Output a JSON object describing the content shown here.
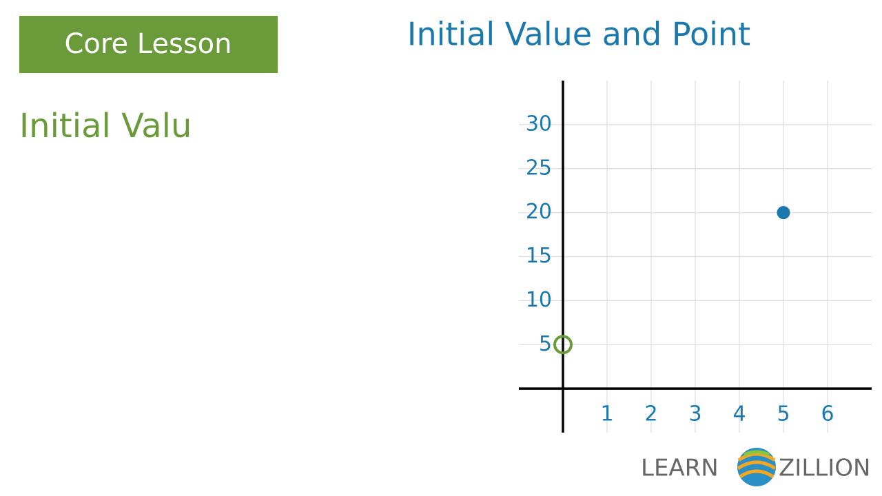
{
  "badge": "Core Lesson",
  "heading": "Initial Valu",
  "logo": {
    "left": "LEARN",
    "right": "ZILLION"
  },
  "chart_data": {
    "type": "scatter",
    "title": "Initial Value and Point",
    "xlim": [
      -1,
      7
    ],
    "ylim": [
      -5,
      35
    ],
    "xticks": [
      1,
      2,
      3,
      4,
      5,
      6
    ],
    "yticks": [
      5,
      10,
      15,
      20,
      25,
      30
    ],
    "grid": true,
    "series": [
      {
        "color": "#6a9a3a",
        "marker": "open",
        "x": [
          0
        ],
        "values": [
          5
        ]
      },
      {
        "color": "#1a78ad",
        "marker": "filled",
        "x": [
          5
        ],
        "values": [
          20
        ]
      }
    ]
  }
}
